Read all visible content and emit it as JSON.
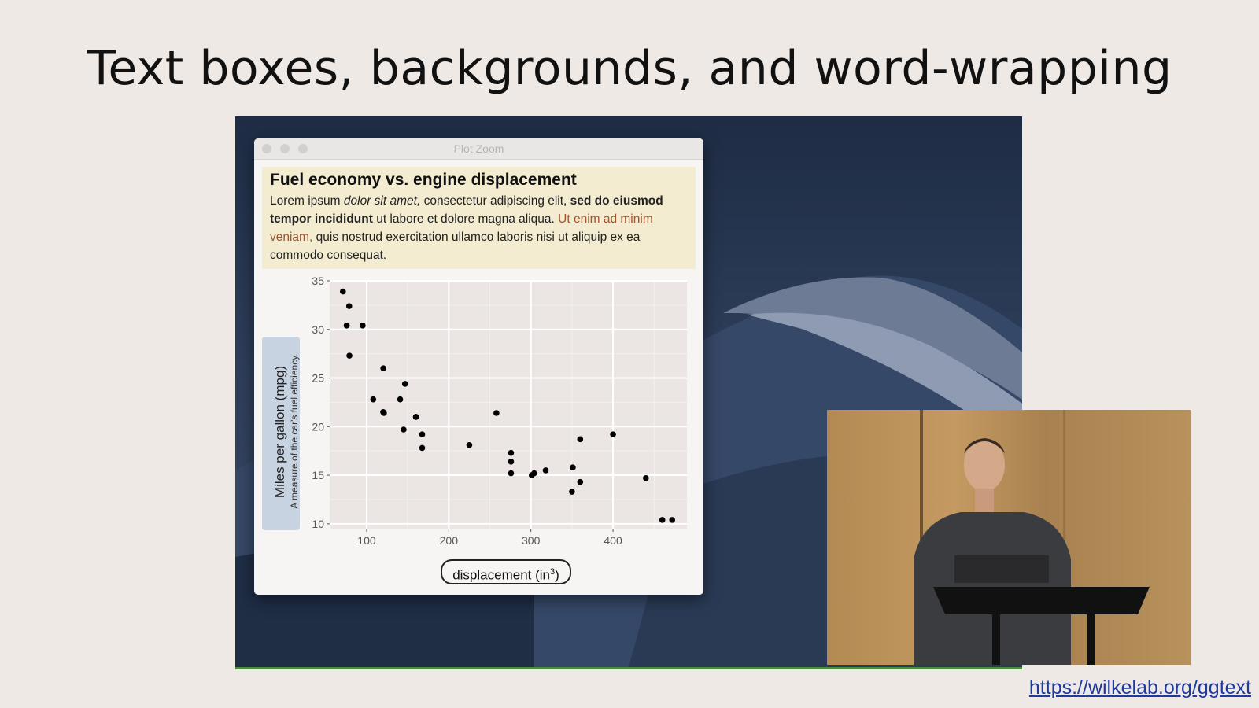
{
  "slide": {
    "title": "Text boxes, backgrounds, and word-wrapping",
    "link": "https://wilkelab.org/ggtext"
  },
  "window": {
    "title": "Plot Zoom"
  },
  "textbox": {
    "title": "Fuel economy vs. engine displacement",
    "subtitle_parts": [
      {
        "text": "Lorem ipsum ",
        "style": "normal"
      },
      {
        "text": "dolor sit amet,",
        "style": "italic"
      },
      {
        "text": " consectetur adipiscing elit, ",
        "style": "normal"
      },
      {
        "text": "sed do eiusmod tempor incididunt",
        "style": "bold"
      },
      {
        "text": " ut labore et dolore magna aliqua. ",
        "style": "normal"
      },
      {
        "text": "Ut enim ad minim veniam,",
        "style": "red"
      },
      {
        "text": " quis nostrud exercitation ullamco laboris nisi ut aliquip ex ea commodo consequat.",
        "style": "normal"
      }
    ]
  },
  "axes": {
    "x_label": "displacement (in",
    "x_label_sup": "3",
    "x_label_end": ")",
    "y_label_main": "Miles per gallon (mpg)",
    "y_label_sub": "A measure of the car's fuel efficiency."
  },
  "colors": {
    "textbox_bg": "#f3ecd0",
    "panel_bg": "#ebe6e3",
    "ylabel_bg": "#c8d3e2",
    "highlight_text": "#a0522d",
    "link": "#1f3a9e"
  },
  "chart_data": {
    "type": "scatter",
    "title": "Fuel economy vs. engine displacement",
    "xlabel": "displacement (in³)",
    "ylabel": "Miles per gallon (mpg)",
    "xlim": [
      55,
      490
    ],
    "ylim": [
      9.5,
      35
    ],
    "x_ticks": [
      100,
      200,
      300,
      400
    ],
    "y_ticks": [
      10,
      15,
      20,
      25,
      30,
      35
    ],
    "grid": true,
    "points": [
      {
        "x": 71.1,
        "y": 33.9
      },
      {
        "x": 75.7,
        "y": 30.4
      },
      {
        "x": 78.7,
        "y": 32.4
      },
      {
        "x": 79.0,
        "y": 27.3
      },
      {
        "x": 95.1,
        "y": 30.4
      },
      {
        "x": 108.0,
        "y": 22.8
      },
      {
        "x": 120.1,
        "y": 21.5
      },
      {
        "x": 120.3,
        "y": 26.0
      },
      {
        "x": 121.0,
        "y": 21.4
      },
      {
        "x": 140.8,
        "y": 22.8
      },
      {
        "x": 145.0,
        "y": 19.7
      },
      {
        "x": 146.7,
        "y": 24.4
      },
      {
        "x": 160.0,
        "y": 21.0
      },
      {
        "x": 160.0,
        "y": 21.0
      },
      {
        "x": 167.6,
        "y": 19.2
      },
      {
        "x": 167.6,
        "y": 17.8
      },
      {
        "x": 225.0,
        "y": 18.1
      },
      {
        "x": 258.0,
        "y": 21.4
      },
      {
        "x": 275.8,
        "y": 16.4
      },
      {
        "x": 275.8,
        "y": 17.3
      },
      {
        "x": 275.8,
        "y": 15.2
      },
      {
        "x": 301.0,
        "y": 15.0
      },
      {
        "x": 304.0,
        "y": 15.2
      },
      {
        "x": 318.0,
        "y": 15.5
      },
      {
        "x": 350.0,
        "y": 13.3
      },
      {
        "x": 351.0,
        "y": 15.8
      },
      {
        "x": 360.0,
        "y": 18.7
      },
      {
        "x": 360.0,
        "y": 14.3
      },
      {
        "x": 400.0,
        "y": 19.2
      },
      {
        "x": 440.0,
        "y": 14.7
      },
      {
        "x": 460.0,
        "y": 10.4
      },
      {
        "x": 472.0,
        "y": 10.4
      }
    ]
  }
}
